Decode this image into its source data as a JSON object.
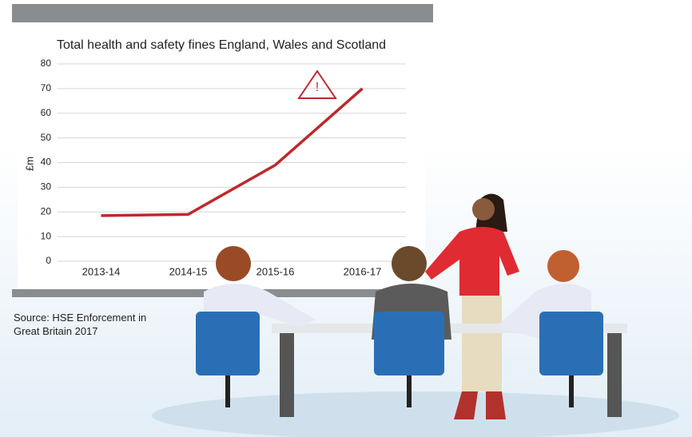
{
  "chart_data": {
    "type": "line",
    "title": "Total health and safety fines England, Wales and Scotland",
    "y_label": "£m",
    "categories": [
      "2013-14",
      "2014-15",
      "2015-16",
      "2016-17"
    ],
    "values": [
      18.5,
      19,
      39,
      70
    ],
    "color": "#c0272d",
    "ylim": [
      0,
      80
    ],
    "yticks": [
      0,
      10,
      20,
      30,
      40,
      50,
      60,
      70,
      80
    ],
    "grid": true,
    "source": "Source: HSE Enforcement in Great Britain 2017"
  }
}
